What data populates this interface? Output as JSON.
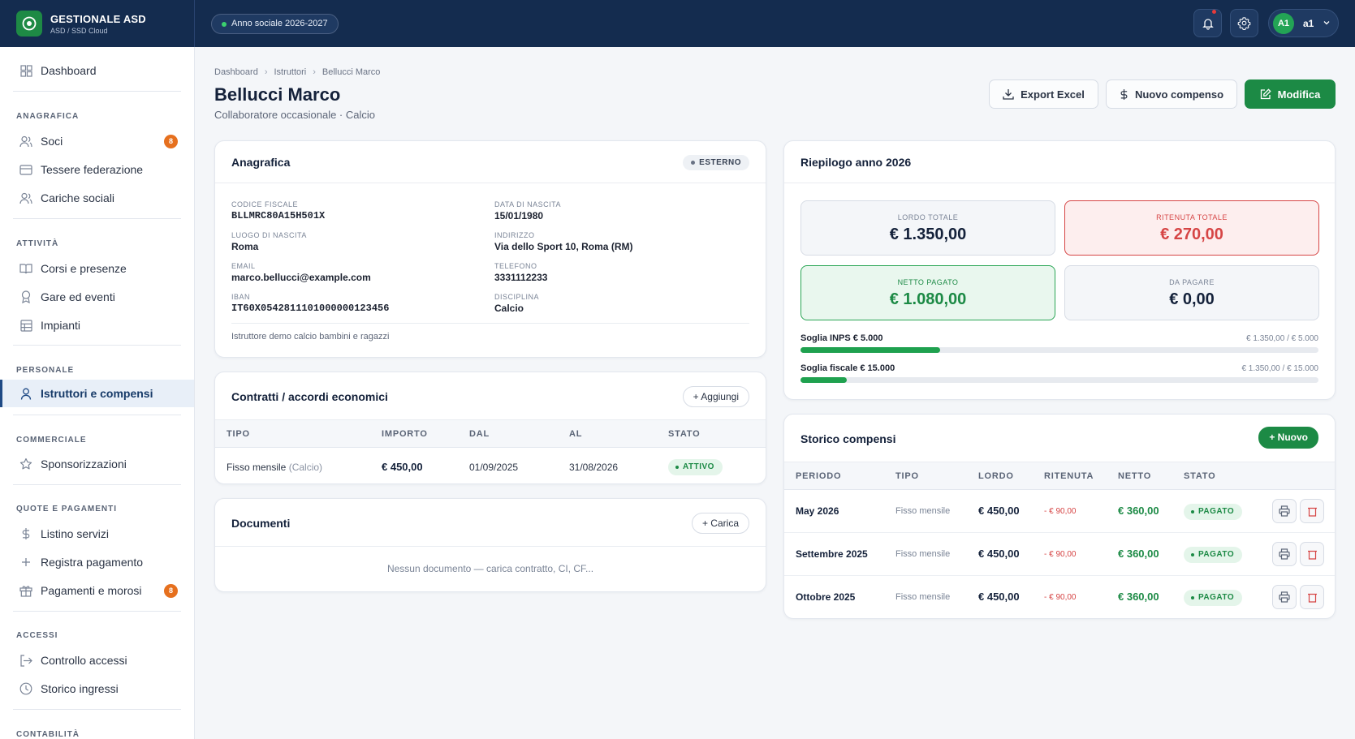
{
  "app": {
    "name": "GESTIONALE ASD",
    "subtitle": "ASD / SSD Cloud",
    "season": "Anno sociale 2026-2027"
  },
  "user": {
    "initials": "A1",
    "name": "a1"
  },
  "sidebar": {
    "dashboard": "Dashboard",
    "sections": {
      "anagrafica": "ANAGRAFICA",
      "attivita": "ATTIVITÀ",
      "personale": "PERSONALE",
      "commerciale": "COMMERCIALE",
      "quote": "QUOTE E PAGAMENTI",
      "accessi": "ACCESSI",
      "contabilita": "CONTABILITÀ"
    },
    "items": {
      "soci": "Soci",
      "soci_badge": "8",
      "tessere": "Tessere federazione",
      "cariche": "Cariche sociali",
      "corsi": "Corsi e presenze",
      "gare": "Gare ed eventi",
      "impianti": "Impianti",
      "istruttori": "Istruttori e compensi",
      "sponsor": "Sponsorizzazioni",
      "listino": "Listino servizi",
      "registra": "Registra pagamento",
      "pagamenti": "Pagamenti e morosi",
      "pagamenti_badge": "8",
      "controllo": "Controllo accessi",
      "storico": "Storico ingressi"
    }
  },
  "breadcrumb": [
    "Dashboard",
    "Istruttori",
    "Bellucci Marco"
  ],
  "page": {
    "title": "Bellucci Marco",
    "subtitle": "Collaboratore occasionale · Calcio"
  },
  "actions": {
    "export": "Export Excel",
    "new_comp": "Nuovo compenso",
    "edit": "Modifica"
  },
  "anagrafica": {
    "title": "Anagrafica",
    "tag": "ESTERNO",
    "fields": {
      "cf_label": "CODICE FISCALE",
      "cf": "BLLMRC80A15H501X",
      "dob_label": "DATA DI NASCITA",
      "dob": "15/01/1980",
      "pob_label": "LUOGO DI NASCITA",
      "pob": "Roma",
      "addr_label": "INDIRIZZO",
      "addr": "Via dello Sport 10, Roma (RM)",
      "email_label": "EMAIL",
      "email": "marco.bellucci@example.com",
      "phone_label": "TELEFONO",
      "phone": "3331112233",
      "iban_label": "IBAN",
      "iban": "IT60X0542811101000000123456",
      "disc_label": "DISCIPLINA",
      "disc": "Calcio"
    },
    "note": "Istruttore demo calcio bambini e ragazzi"
  },
  "contratti": {
    "title": "Contratti / accordi economici",
    "add": "+ Aggiungi",
    "headers": [
      "TIPO",
      "IMPORTO",
      "DAL",
      "AL",
      "STATO"
    ],
    "row": {
      "tipo": "Fisso mensile",
      "disc": "(Calcio)",
      "importo": "€ 450,00",
      "dal": "01/09/2025",
      "al": "31/08/2026",
      "stato": "ATTIVO"
    }
  },
  "documenti": {
    "title": "Documenti",
    "upload": "+ Carica",
    "empty": "Nessun documento — carica contratto, CI, CF..."
  },
  "riepilogo": {
    "title": "Riepilogo anno 2026",
    "kpis": {
      "lordo_label": "LORDO TOTALE",
      "lordo": "€ 1.350,00",
      "ritenuta_label": "RITENUTA TOTALE",
      "ritenuta": "€ 270,00",
      "netto_label": "NETTO PAGATO",
      "netto": "€ 1.080,00",
      "dapagare_label": "DA PAGARE",
      "dapagare": "€ 0,00"
    },
    "inps": {
      "label": "Soglia INPS € 5.000",
      "value": "€ 1.350,00 / € 5.000",
      "progress": 0.27
    },
    "fiscale": {
      "label": "Soglia fiscale € 15.000",
      "value": "€ 1.350,00 / € 15.000",
      "progress": 0.09
    }
  },
  "storico": {
    "title": "Storico compensi",
    "new": "+ Nuovo",
    "headers": [
      "PERIODO",
      "TIPO",
      "LORDO",
      "RITENUTA",
      "NETTO",
      "STATO"
    ],
    "rows": [
      {
        "periodo": "May 2026",
        "tipo": "Fisso mensile",
        "lordo": "€ 450,00",
        "ritenuta": "- € 90,00",
        "netto": "€ 360,00",
        "stato": "PAGATO"
      },
      {
        "periodo": "Settembre 2025",
        "tipo": "Fisso mensile",
        "lordo": "€ 450,00",
        "ritenuta": "- € 90,00",
        "netto": "€ 360,00",
        "stato": "PAGATO"
      },
      {
        "periodo": "Ottobre 2025",
        "tipo": "Fisso mensile",
        "lordo": "€ 450,00",
        "ritenuta": "- € 90,00",
        "netto": "€ 360,00",
        "stato": "PAGATO"
      }
    ]
  },
  "colors": {
    "navy": "#142c4f",
    "green": "#1c8a45",
    "red": "#d64545",
    "orange": "#e6701e"
  }
}
